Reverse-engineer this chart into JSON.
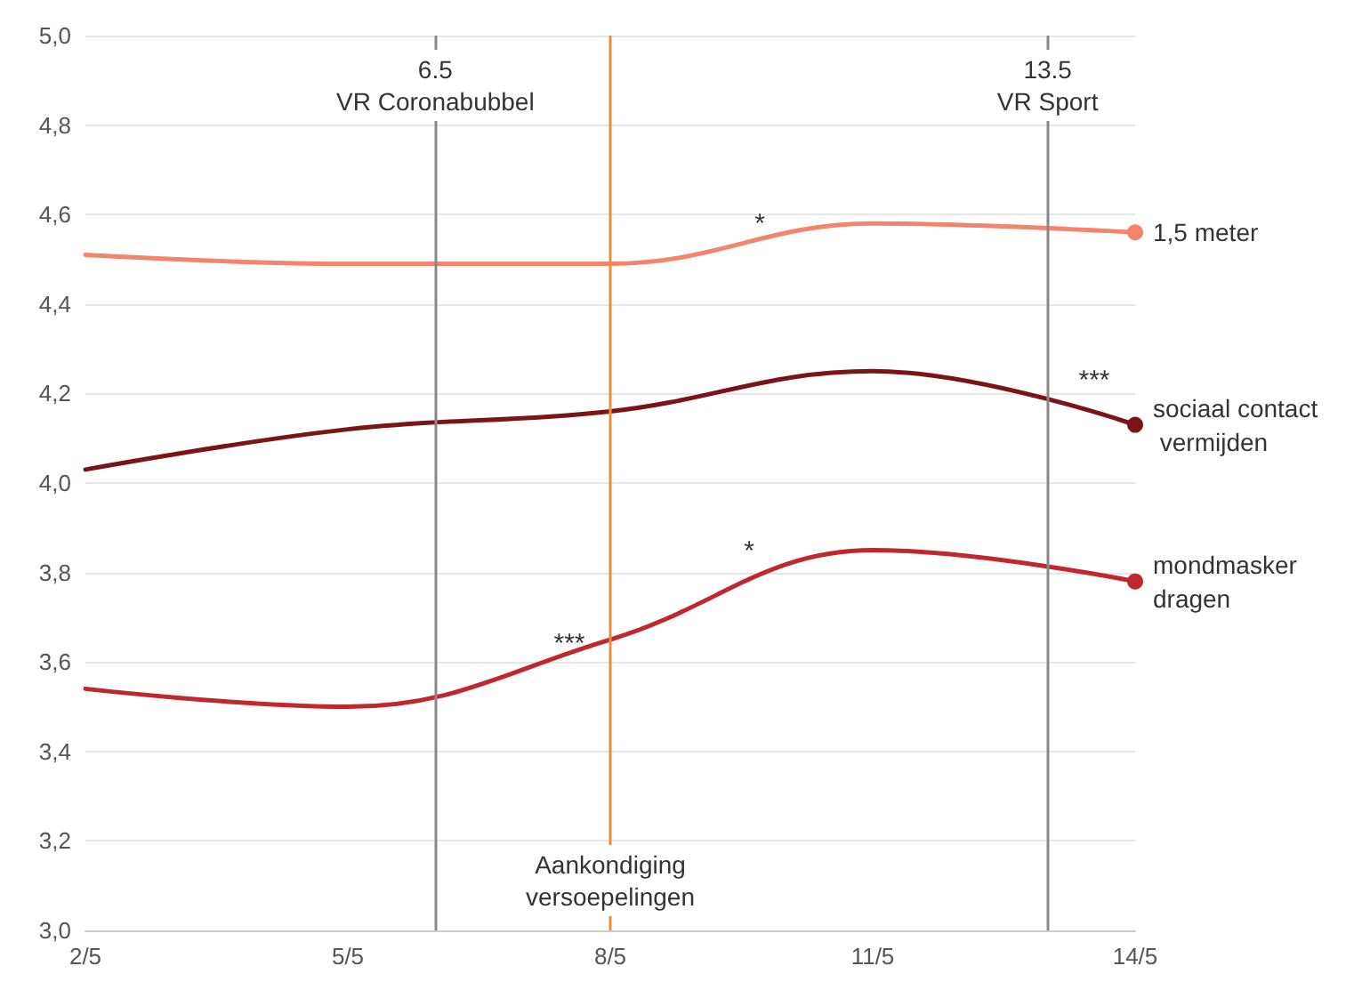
{
  "chart_data": {
    "type": "line",
    "x": [
      "--05-02",
      "--05-05",
      "--05-08",
      "--05-11",
      "--05-14"
    ],
    "series": [
      {
        "name": "1,5 meter",
        "color": "#f4846c",
        "values": [
          4.51,
          4.49,
          4.49,
          4.58,
          4.56
        ]
      },
      {
        "name": "sociaal contact vermijden",
        "color": "#7a1417",
        "values": [
          4.03,
          4.12,
          4.16,
          4.25,
          4.13
        ]
      },
      {
        "name": "mondmasker dragen",
        "color": "#c0282d",
        "values": [
          3.54,
          3.5,
          3.65,
          3.85,
          3.78
        ]
      }
    ],
    "xlim": [
      "--05-02",
      "--05-14"
    ],
    "xticks": [
      {
        "value": "--05-02",
        "label": "2/5"
      },
      {
        "value": "--05-05",
        "label": "5/5"
      },
      {
        "value": "--05-08",
        "label": "8/5"
      },
      {
        "value": "--05-11",
        "label": "11/5"
      },
      {
        "value": "--05-14",
        "label": "14/5"
      }
    ],
    "ylim": [
      3,
      5
    ],
    "yticks": [
      {
        "value": 3,
        "label": "3,0"
      },
      {
        "value": 3.2,
        "label": "3,2"
      },
      {
        "value": 3.4,
        "label": "3,4"
      },
      {
        "value": 3.6,
        "label": "3,6"
      },
      {
        "value": 3.8,
        "label": "3,8"
      },
      {
        "value": 4,
        "label": "4,0"
      },
      {
        "value": 4.2,
        "label": "4,2"
      },
      {
        "value": 4.4,
        "label": "4,4"
      },
      {
        "value": 4.6,
        "label": "4,6"
      },
      {
        "value": 4.8,
        "label": "4,8"
      },
      {
        "value": 5,
        "label": "5,0"
      }
    ],
    "ref_lines": [
      {
        "axis": "x",
        "value": "--05-06",
        "label": "6.5\nVR Coronabubbel",
        "color": "#888888"
      },
      {
        "axis": "x",
        "value": "--05-08",
        "label": "Aankondiging\nversoepelingen",
        "color": "#e8913a"
      },
      {
        "axis": "x",
        "value": "--05-13",
        "label": "13.5\nVR Sport",
        "color": "#888888"
      }
    ],
    "annotations": [
      "*",
      "***",
      "***",
      "*"
    ],
    "grid": "y",
    "line_style": "solid",
    "legend": false
  }
}
